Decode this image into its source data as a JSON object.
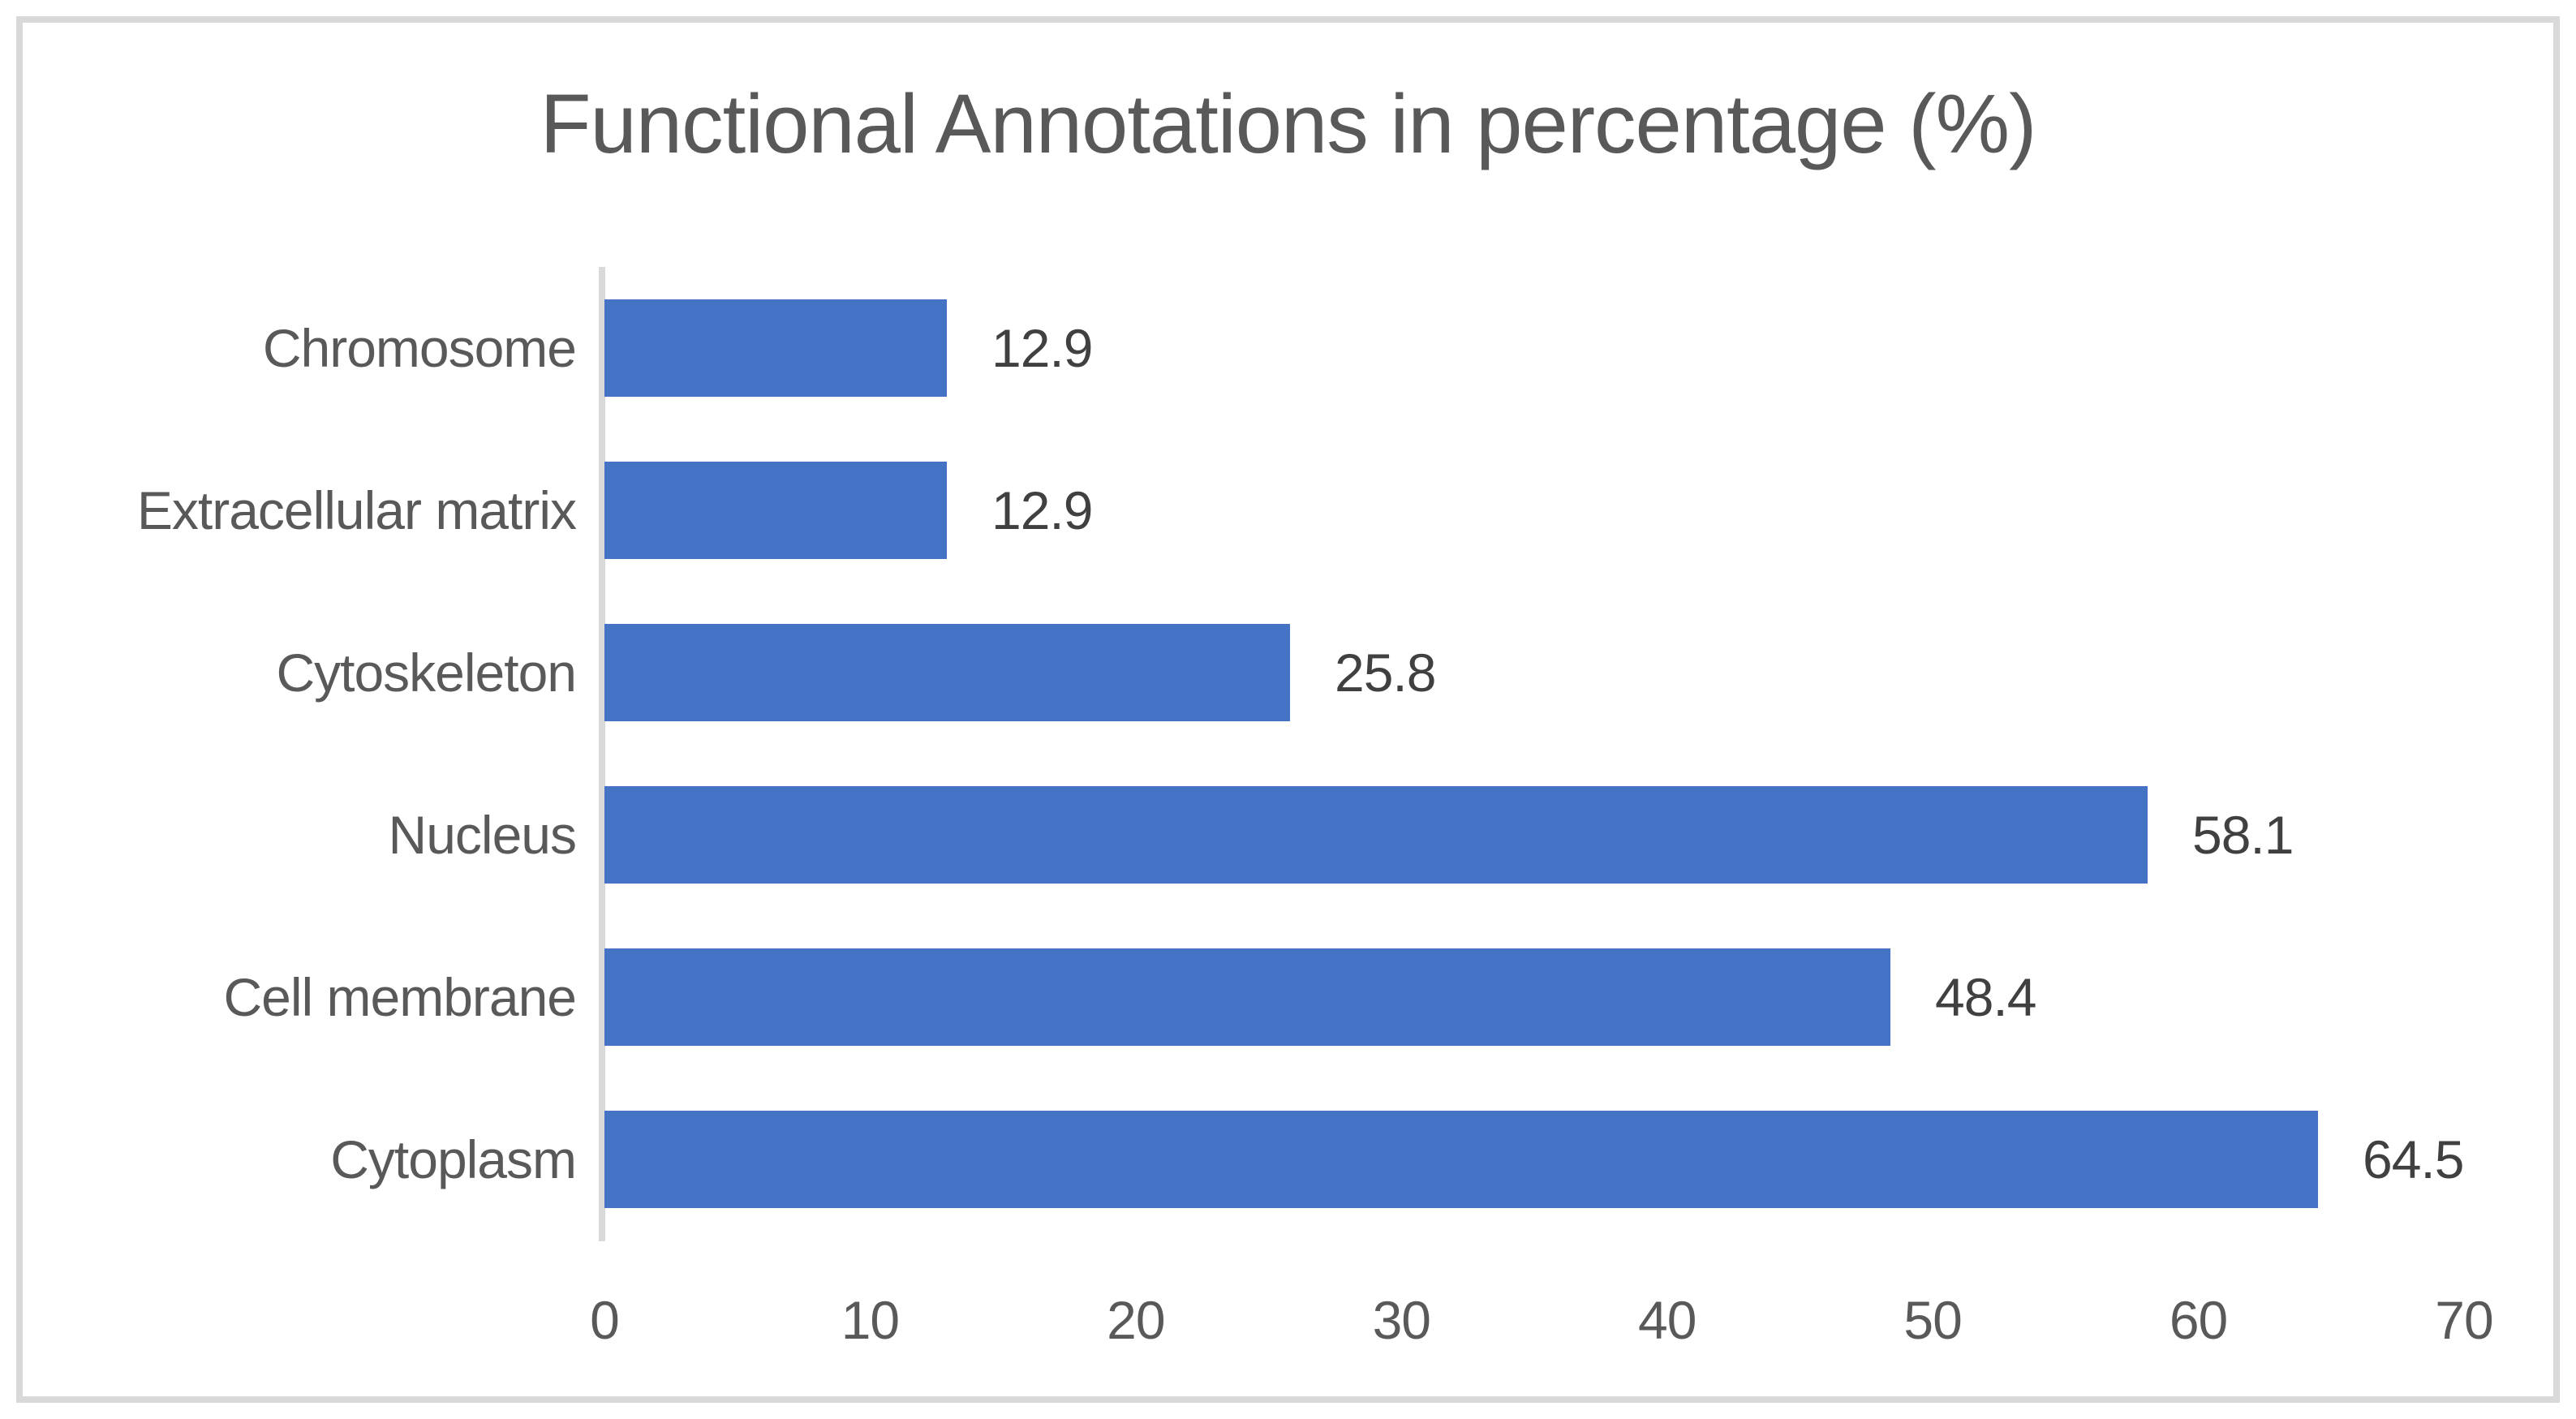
{
  "chart_data": {
    "type": "bar",
    "orientation": "horizontal",
    "title": "Functional Annotations in percentage (%)",
    "categories": [
      "Chromosome",
      "Extracellular matrix",
      "Cytoskeleton",
      "Nucleus",
      "Cell membrane",
      "Cytoplasm"
    ],
    "values": [
      12.9,
      12.9,
      25.8,
      58.1,
      48.4,
      64.5
    ],
    "data_labels": [
      "12.9",
      "12.9",
      "25.8",
      "58.1",
      "48.4",
      "64.5"
    ],
    "x_ticks": [
      "0",
      "10",
      "20",
      "30",
      "40",
      "50",
      "60",
      "70"
    ],
    "xlim": [
      0,
      70
    ],
    "grid": false,
    "legend": false,
    "data_labels_shown": true,
    "bar_color": "#4472C4",
    "axis_line_color": "#D9D9D9",
    "frame_border_color": "#D9D9D9",
    "title_color": "#595959",
    "category_label_color": "#595959",
    "tick_label_color": "#595959",
    "value_label_color": "#404040",
    "background_color": "#FFFFFF"
  }
}
